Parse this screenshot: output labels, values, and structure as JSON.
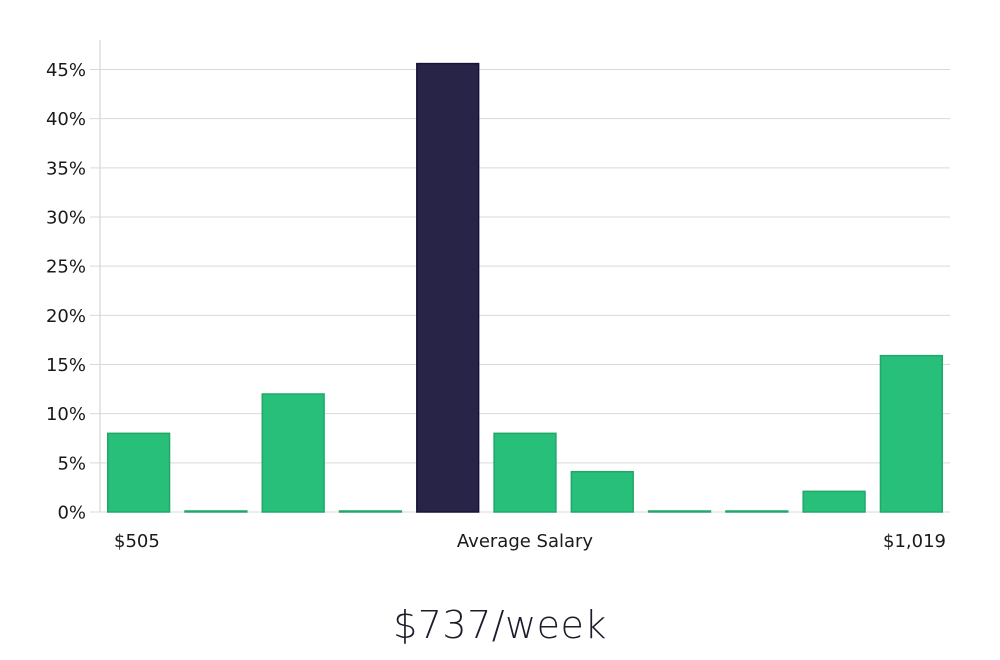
{
  "headline": "$737/week",
  "chart_data": {
    "type": "bar",
    "title": "",
    "xlabel": "",
    "ylabel": "",
    "ylim": [
      0,
      48
    ],
    "y_ticks": [
      0,
      5,
      10,
      15,
      20,
      25,
      30,
      35,
      40,
      45
    ],
    "y_tick_format": "percent",
    "grid": true,
    "categories": [
      "$505",
      "",
      "",
      "",
      "",
      "Average Salary",
      "",
      "",
      "",
      "",
      "$1,019"
    ],
    "values": [
      8,
      0,
      12,
      0,
      45.6,
      8,
      4.1,
      0,
      0,
      2.1,
      15.9
    ],
    "highlight_index": 4,
    "colors": {
      "bar": "#28bf7a",
      "bar_border": "#20a869",
      "highlight": "#272447",
      "highlight_border": "#16133a",
      "grid": "#d9d9d9",
      "axis": "#cccccc"
    }
  }
}
